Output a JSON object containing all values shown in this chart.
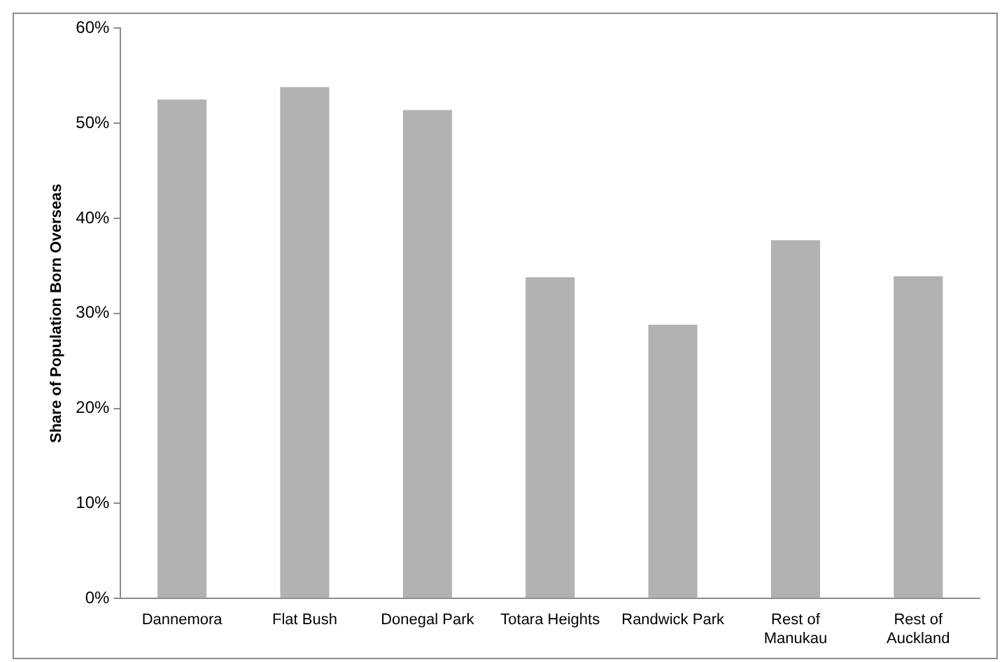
{
  "chart_data": {
    "type": "bar",
    "ylabel": "Share of Population Born Overseas",
    "categories": [
      "Dannemora",
      "Flat Bush",
      "Donegal Park",
      "Totara Heights",
      "Randwick Park",
      "Rest of Manukau",
      "Rest of Auckland"
    ],
    "values": [
      52.5,
      53.8,
      51.4,
      33.8,
      28.8,
      37.7,
      33.9
    ],
    "color": "#b2b2b2",
    "ylim": [
      0,
      60
    ],
    "yticks": [
      {
        "value": 0,
        "label": "0%"
      },
      {
        "value": 10,
        "label": "10%"
      },
      {
        "value": 20,
        "label": "20%"
      },
      {
        "value": 30,
        "label": "30%"
      },
      {
        "value": 40,
        "label": "40%"
      },
      {
        "value": 50,
        "label": "50%"
      },
      {
        "value": 60,
        "label": "60%"
      }
    ],
    "grid": false,
    "legend": false
  }
}
